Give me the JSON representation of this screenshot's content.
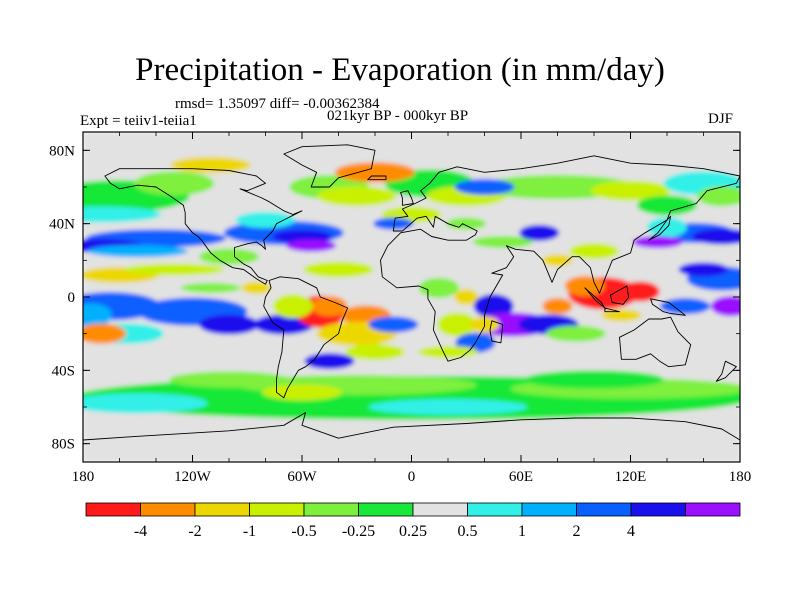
{
  "title": "Precipitation - Evaporation (in mm/day)",
  "stats": "rmsd= 1.35097 diff= -0.00362384",
  "experiment": "Expt = teiiv1-teiia1",
  "period": "021kyr BP - 000kyr BP",
  "season": "DJF",
  "lat_ticks": [
    "80N",
    "40N",
    "0",
    "40S",
    "80S"
  ],
  "lon_ticks": [
    "180",
    "120W",
    "60W",
    "0",
    "60E",
    "120E",
    "180"
  ],
  "colorbar": {
    "labels": [
      "-4",
      "-2",
      "-1",
      "-0.5",
      "-0.25",
      "0.25",
      "0.5",
      "1",
      "2",
      "4"
    ],
    "colors": [
      "#ff1a1a",
      "#ff8c00",
      "#ecd800",
      "#c9f000",
      "#7ef03c",
      "#18e838",
      "#e2e2e2",
      "#30f0e8",
      "#00b0ff",
      "#0a60ff",
      "#1a10ee",
      "#9a10ff"
    ]
  }
}
